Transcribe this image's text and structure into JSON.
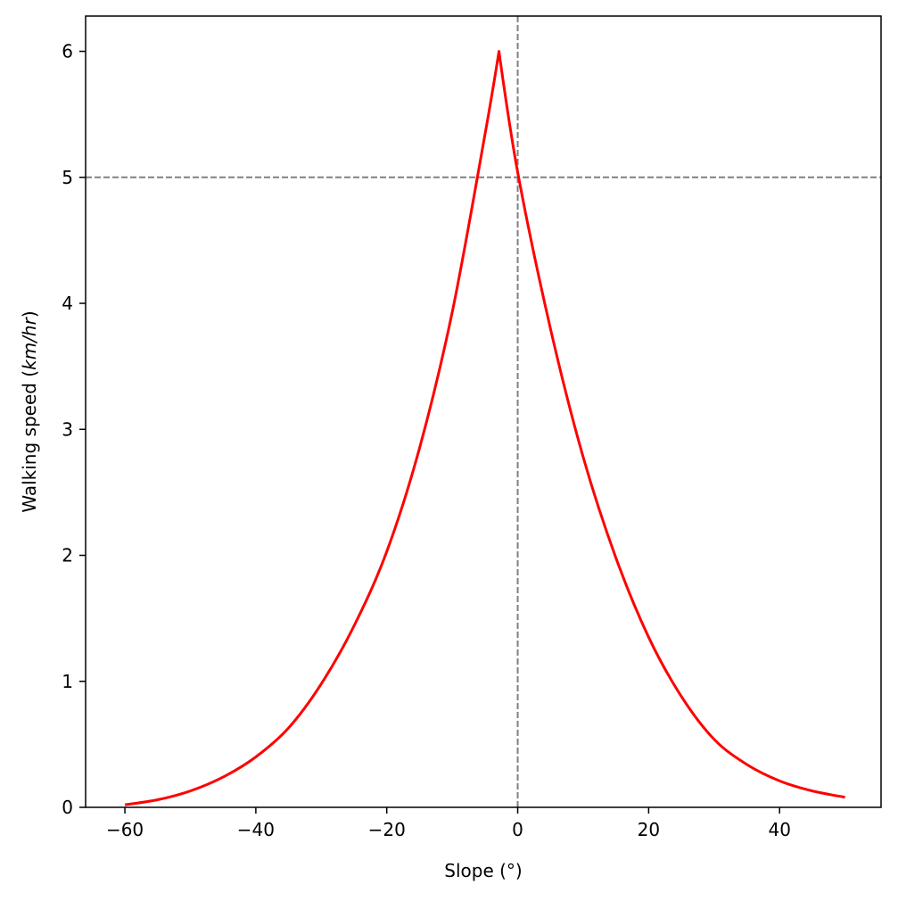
{
  "chart_data": {
    "type": "line",
    "title": "",
    "xlabel": "Slope (°)",
    "ylabel_prefix": "Walking speed (",
    "ylabel_unit": "km/hr",
    "ylabel_suffix": ")",
    "xlim": [
      -66,
      55.5
    ],
    "ylim": [
      0,
      6.28
    ],
    "xticks": [
      -60,
      -40,
      -20,
      0,
      20,
      40
    ],
    "xtick_labels": [
      "−60",
      "−40",
      "−20",
      "0",
      "20",
      "40"
    ],
    "yticks": [
      0,
      1,
      2,
      3,
      4,
      5,
      6
    ],
    "ytick_labels": [
      "0",
      "1",
      "2",
      "3",
      "4",
      "5",
      "6"
    ],
    "grid": false,
    "reference_lines": [
      {
        "orientation": "vertical",
        "value": 0,
        "color": "#808080",
        "style": "dashed"
      },
      {
        "orientation": "horizontal",
        "value": 5,
        "color": "#808080",
        "style": "dashed"
      }
    ],
    "series": [
      {
        "color": "#ff0000",
        "x": [
          -60,
          -55,
          -50,
          -45,
          -40,
          -35,
          -30,
          -25,
          -20,
          -15,
          -10,
          -5,
          -2.86,
          0,
          5,
          10,
          15,
          20,
          25,
          30,
          35,
          40,
          45,
          50
        ],
        "y": [
          0.02,
          0.06,
          0.13,
          0.24,
          0.4,
          0.63,
          0.98,
          1.44,
          2.03,
          2.85,
          3.93,
          5.34,
          6.0,
          5.04,
          3.8,
          2.78,
          1.98,
          1.35,
          0.88,
          0.54,
          0.34,
          0.21,
          0.13,
          0.08
        ]
      }
    ]
  }
}
